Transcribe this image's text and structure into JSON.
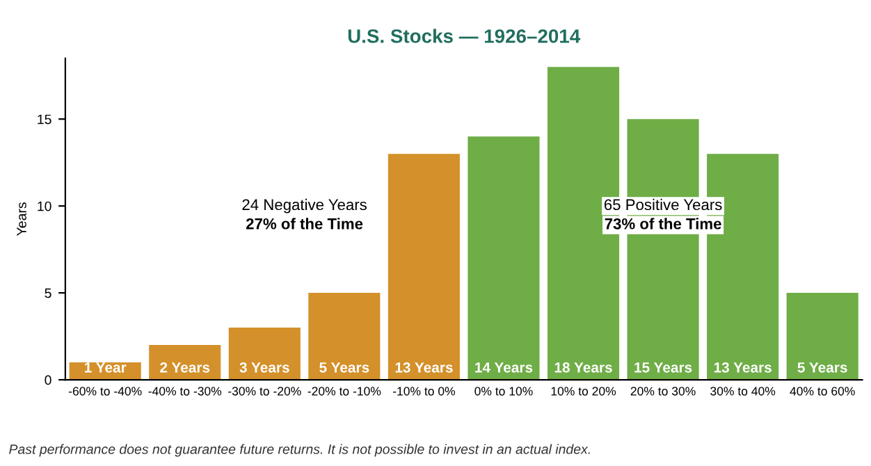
{
  "chart_data": {
    "type": "bar",
    "title": "U.S. Stocks — 1926–2014",
    "ylabel": "Years",
    "categories": [
      "-60% to -40%",
      "-40% to -30%",
      "-30% to -20%",
      "-20% to -10%",
      "-10% to 0%",
      "0% to 10%",
      "10% to 20%",
      "20% to 30%",
      "30% to 40%",
      "40% to 60%"
    ],
    "values": [
      1,
      2,
      3,
      5,
      13,
      14,
      18,
      15,
      13,
      5
    ],
    "colors": [
      "#d4902a",
      "#d4902a",
      "#d4902a",
      "#d4902a",
      "#d4902a",
      "#6fad46",
      "#6fad46",
      "#6fad46",
      "#6fad46",
      "#6fad46"
    ],
    "value_labels": [
      "1 Year",
      "2 Years",
      "3 Years",
      "5 Years",
      "13 Years",
      "14 Years",
      "18 Years",
      "15 Years",
      "13 Years",
      "5 Years"
    ],
    "ylim": [
      0,
      18.5
    ],
    "yticks": [
      0,
      5,
      10,
      15
    ],
    "grid": false,
    "annotations": [
      "24 Negative Years",
      "27% of the Time",
      "65 Positive Years",
      "73% of the Time",
      "Past performance does not guarantee future returns. It is not possible to invest in an actual index."
    ]
  }
}
